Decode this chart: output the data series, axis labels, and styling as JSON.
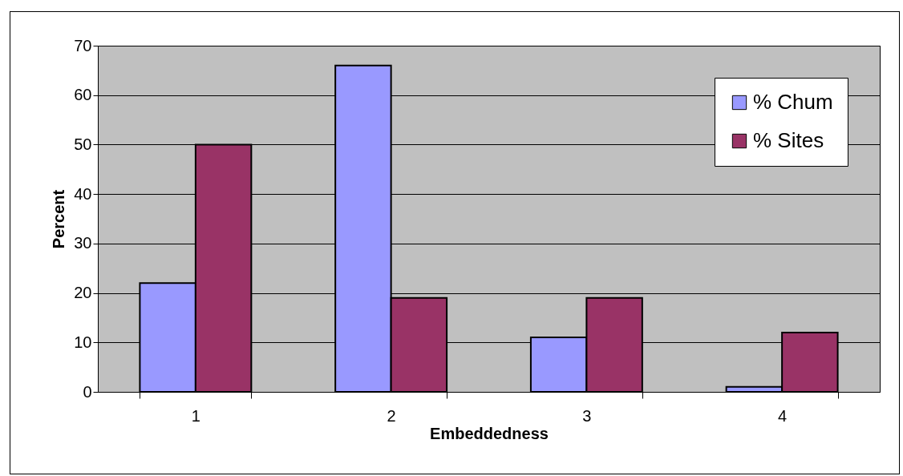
{
  "chart_data": {
    "type": "bar",
    "xlabel": "Embeddedness",
    "ylabel": "Percent",
    "categories": [
      "1",
      "2",
      "3",
      "4"
    ],
    "series": [
      {
        "name": "% Chum",
        "color": "#9999ff",
        "values": [
          22,
          66,
          11,
          1
        ]
      },
      {
        "name": "% Sites",
        "color": "#993366",
        "values": [
          50,
          19,
          19,
          12
        ]
      }
    ],
    "ylim": [
      0,
      70
    ],
    "yticks": [
      0,
      10,
      20,
      30,
      40,
      50,
      60,
      70
    ],
    "grid": "y",
    "legend": "top right"
  }
}
